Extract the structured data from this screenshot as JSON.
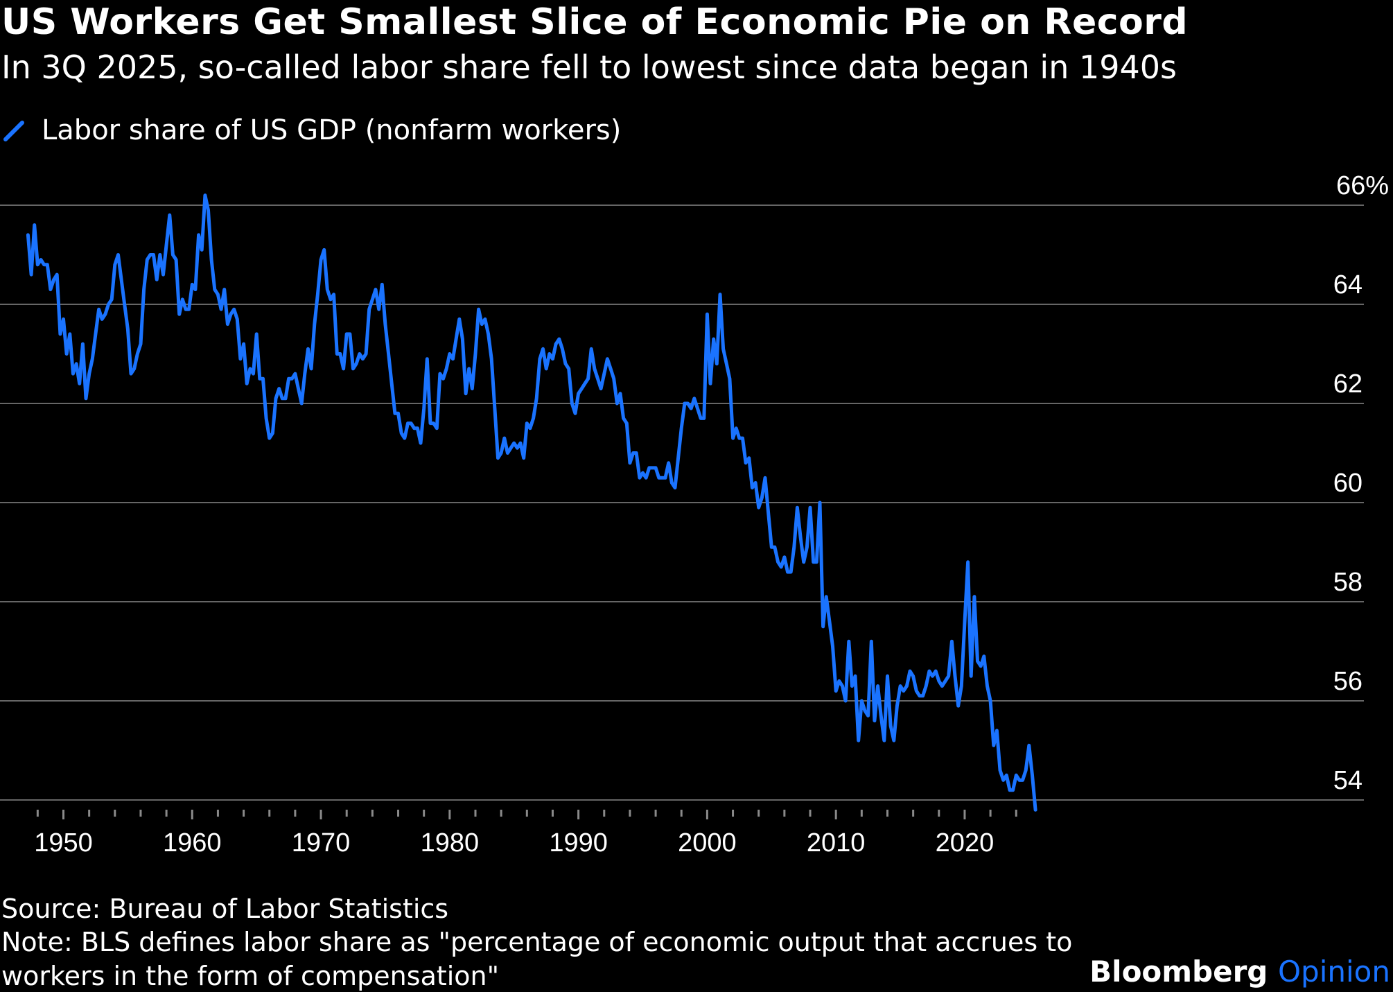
{
  "title": "US Workers Get Smallest Slice of Economic Pie on Record",
  "subtitle": "In 3Q 2025, so-called labor share fell to lowest since data began in 1940s",
  "footer": {
    "source": "Source: Bureau of Labor Statistics",
    "note_line1": "Note: BLS defines labor share as \"percentage of economic output that accrues to",
    "note_line2": "workers in the form of compensation\""
  },
  "brand": {
    "name": "Bloomberg",
    "accent": "Opinion"
  },
  "colors": {
    "line": "#1a73ff",
    "background": "#000000",
    "grid": "#666666",
    "text": "#ffffff"
  },
  "chart_data": {
    "type": "line",
    "title": "US Workers Get Smallest Slice of Economic Pie on Record",
    "subtitle": "In 3Q 2025, so-called labor share fell to lowest since data began in 1940s",
    "xlabel": "",
    "ylabel": "",
    "xlim": [
      1946.5,
      2026.5
    ],
    "ylim": [
      53.8,
      66
    ],
    "y_ticks": [
      54,
      56,
      58,
      60,
      62,
      64,
      66
    ],
    "y_tick_labels": [
      "54",
      "56",
      "58",
      "60",
      "62",
      "64",
      "66%"
    ],
    "x_ticks": [
      1950,
      1960,
      1970,
      1980,
      1990,
      2000,
      2010,
      2020
    ],
    "x_tick_labels": [
      "1950",
      "1960",
      "1970",
      "1980",
      "1990",
      "2000",
      "2010",
      "2020"
    ],
    "grid": "horizontal",
    "legend_position": "top-left",
    "series": [
      {
        "name": "Labor share of US GDP (nonfarm workers)",
        "x": [
          1947.25,
          1947.5,
          1947.75,
          1948.0,
          1948.25,
          1948.5,
          1948.75,
          1949.0,
          1949.25,
          1949.5,
          1949.75,
          1950.0,
          1950.25,
          1950.5,
          1950.75,
          1951.0,
          1951.25,
          1951.5,
          1951.75,
          1952.0,
          1952.25,
          1952.5,
          1952.75,
          1953.0,
          1953.25,
          1953.5,
          1953.75,
          1954.0,
          1954.25,
          1954.5,
          1954.75,
          1955.0,
          1955.25,
          1955.5,
          1955.75,
          1956.0,
          1956.25,
          1956.5,
          1956.75,
          1957.0,
          1957.25,
          1957.5,
          1957.75,
          1958.0,
          1958.25,
          1958.5,
          1958.75,
          1959.0,
          1959.25,
          1959.5,
          1959.75,
          1960.0,
          1960.25,
          1960.5,
          1960.75,
          1961.0,
          1961.25,
          1961.5,
          1961.75,
          1962.0,
          1962.25,
          1962.5,
          1962.75,
          1963.0,
          1963.25,
          1963.5,
          1963.75,
          1964.0,
          1964.25,
          1964.5,
          1964.75,
          1965.0,
          1965.25,
          1965.5,
          1965.75,
          1966.0,
          1966.25,
          1966.5,
          1966.75,
          1967.0,
          1967.25,
          1967.5,
          1967.75,
          1968.0,
          1968.25,
          1968.5,
          1968.75,
          1969.0,
          1969.25,
          1969.5,
          1969.75,
          1970.0,
          1970.25,
          1970.5,
          1970.75,
          1971.0,
          1971.25,
          1971.5,
          1971.75,
          1972.0,
          1972.25,
          1972.5,
          1972.75,
          1973.0,
          1973.25,
          1973.5,
          1973.75,
          1974.0,
          1974.25,
          1974.5,
          1974.75,
          1975.0,
          1975.25,
          1975.5,
          1975.75,
          1976.0,
          1976.25,
          1976.5,
          1976.75,
          1977.0,
          1977.25,
          1977.5,
          1977.75,
          1978.0,
          1978.25,
          1978.5,
          1978.75,
          1979.0,
          1979.25,
          1979.5,
          1979.75,
          1980.0,
          1980.25,
          1980.5,
          1980.75,
          1981.0,
          1981.25,
          1981.5,
          1981.75,
          1982.0,
          1982.25,
          1982.5,
          1982.75,
          1983.0,
          1983.25,
          1983.5,
          1983.75,
          1984.0,
          1984.25,
          1984.5,
          1984.75,
          1985.0,
          1985.25,
          1985.5,
          1985.75,
          1986.0,
          1986.25,
          1986.5,
          1986.75,
          1987.0,
          1987.25,
          1987.5,
          1987.75,
          1988.0,
          1988.25,
          1988.5,
          1988.75,
          1989.0,
          1989.25,
          1989.5,
          1989.75,
          1990.0,
          1990.25,
          1990.5,
          1990.75,
          1991.0,
          1991.25,
          1991.5,
          1991.75,
          1992.0,
          1992.25,
          1992.5,
          1992.75,
          1993.0,
          1993.25,
          1993.5,
          1993.75,
          1994.0,
          1994.25,
          1994.5,
          1994.75,
          1995.0,
          1995.25,
          1995.5,
          1995.75,
          1996.0,
          1996.25,
          1996.5,
          1996.75,
          1997.0,
          1997.25,
          1997.5,
          1997.75,
          1998.0,
          1998.25,
          1998.5,
          1998.75,
          1999.0,
          1999.25,
          1999.5,
          1999.75,
          2000.0,
          2000.25,
          2000.5,
          2000.75,
          2001.0,
          2001.25,
          2001.5,
          2001.75,
          2002.0,
          2002.25,
          2002.5,
          2002.75,
          2003.0,
          2003.25,
          2003.5,
          2003.75,
          2004.0,
          2004.25,
          2004.5,
          2004.75,
          2005.0,
          2005.25,
          2005.5,
          2005.75,
          2006.0,
          2006.25,
          2006.5,
          2006.75,
          2007.0,
          2007.25,
          2007.5,
          2007.75,
          2008.0,
          2008.25,
          2008.5,
          2008.75,
          2009.0,
          2009.25,
          2009.5,
          2009.75,
          2010.0,
          2010.25,
          2010.5,
          2010.75,
          2011.0,
          2011.25,
          2011.5,
          2011.75,
          2012.0,
          2012.25,
          2012.5,
          2012.75,
          2013.0,
          2013.25,
          2013.5,
          2013.75,
          2014.0,
          2014.25,
          2014.5,
          2014.75,
          2015.0,
          2015.25,
          2015.5,
          2015.75,
          2016.0,
          2016.25,
          2016.5,
          2016.75,
          2017.0,
          2017.25,
          2017.5,
          2017.75,
          2018.0,
          2018.25,
          2018.5,
          2018.75,
          2019.0,
          2019.25,
          2019.5,
          2019.75,
          2020.0,
          2020.25,
          2020.5,
          2020.75,
          2021.0,
          2021.25,
          2021.5,
          2021.75,
          2022.0,
          2022.25,
          2022.5,
          2022.75,
          2023.0,
          2023.25,
          2023.5,
          2023.75,
          2024.0,
          2024.25,
          2024.5,
          2024.75,
          2025.0,
          2025.25,
          2025.5
        ],
        "values": [
          65.4,
          64.6,
          65.6,
          64.8,
          64.9,
          64.8,
          64.8,
          64.3,
          64.5,
          64.6,
          63.4,
          63.7,
          63.0,
          63.4,
          62.6,
          62.8,
          62.4,
          63.2,
          62.1,
          62.6,
          62.9,
          63.4,
          63.9,
          63.7,
          63.8,
          64.0,
          64.1,
          64.8,
          65.0,
          64.5,
          64.0,
          63.5,
          62.6,
          62.7,
          63.0,
          63.2,
          64.3,
          64.9,
          65.0,
          65.0,
          64.5,
          65.0,
          64.6,
          65.2,
          65.8,
          65.0,
          64.9,
          63.8,
          64.1,
          63.9,
          63.9,
          64.4,
          64.3,
          65.4,
          65.1,
          66.2,
          65.9,
          64.9,
          64.3,
          64.2,
          63.9,
          64.3,
          63.6,
          63.8,
          63.9,
          63.7,
          62.9,
          63.2,
          62.4,
          62.7,
          62.6,
          63.4,
          62.5,
          62.5,
          61.7,
          61.3,
          61.4,
          62.1,
          62.3,
          62.1,
          62.1,
          62.5,
          62.5,
          62.6,
          62.3,
          62.0,
          62.6,
          63.1,
          62.7,
          63.6,
          64.2,
          64.9,
          65.1,
          64.3,
          64.1,
          64.2,
          63.0,
          63.0,
          62.7,
          63.4,
          63.4,
          62.7,
          62.8,
          63.0,
          62.9,
          63.0,
          63.9,
          64.1,
          64.3,
          63.9,
          64.4,
          63.6,
          63.0,
          62.4,
          61.8,
          61.8,
          61.4,
          61.3,
          61.6,
          61.6,
          61.5,
          61.5,
          61.2,
          61.9,
          62.9,
          61.6,
          61.6,
          61.5,
          62.6,
          62.5,
          62.7,
          63.0,
          62.9,
          63.3,
          63.7,
          63.3,
          62.2,
          62.7,
          62.3,
          63.0,
          63.9,
          63.6,
          63.7,
          63.4,
          62.9,
          61.9,
          60.9,
          61.0,
          61.3,
          61.0,
          61.1,
          61.2,
          61.1,
          61.2,
          60.9,
          61.6,
          61.5,
          61.7,
          62.1,
          62.9,
          63.1,
          62.7,
          63.0,
          62.9,
          63.2,
          63.3,
          63.1,
          62.8,
          62.7,
          62.0,
          61.8,
          62.2,
          62.3,
          62.4,
          62.5,
          63.1,
          62.7,
          62.5,
          62.3,
          62.6,
          62.9,
          62.7,
          62.5,
          62.0,
          62.2,
          61.7,
          61.6,
          60.8,
          61.0,
          61.0,
          60.5,
          60.6,
          60.5,
          60.7,
          60.7,
          60.7,
          60.5,
          60.5,
          60.5,
          60.8,
          60.4,
          60.3,
          60.9,
          61.5,
          62.0,
          62.0,
          61.9,
          62.1,
          61.9,
          61.7,
          61.7,
          63.8,
          62.4,
          63.3,
          62.8,
          64.2,
          63.1,
          62.8,
          62.5,
          61.3,
          61.5,
          61.3,
          61.3,
          60.8,
          60.9,
          60.3,
          60.4,
          59.9,
          60.1,
          60.5,
          59.8,
          59.1,
          59.1,
          58.8,
          58.7,
          58.9,
          58.6,
          58.6,
          59.1,
          59.9,
          59.3,
          58.8,
          59.1,
          59.9,
          58.8,
          58.8,
          60.0,
          57.5,
          58.1,
          57.6,
          57.1,
          56.2,
          56.4,
          56.3,
          56.0,
          57.2,
          56.3,
          56.5,
          55.2,
          56.0,
          55.8,
          55.7,
          57.2,
          55.6,
          56.3,
          55.7,
          55.2,
          56.5,
          55.5,
          55.2,
          55.9,
          56.3,
          56.2,
          56.3,
          56.6,
          56.5,
          56.2,
          56.1,
          56.1,
          56.3,
          56.6,
          56.5,
          56.6,
          56.4,
          56.3,
          56.4,
          56.5,
          57.2,
          56.5,
          55.9,
          56.3,
          57.6,
          58.8,
          56.5,
          58.1,
          56.8,
          56.7,
          56.9,
          56.3,
          56.0,
          55.1,
          55.4,
          54.6,
          54.4,
          54.5,
          54.2,
          54.2,
          54.5,
          54.4,
          54.4,
          54.6,
          55.1,
          54.5,
          53.8
        ]
      }
    ]
  }
}
